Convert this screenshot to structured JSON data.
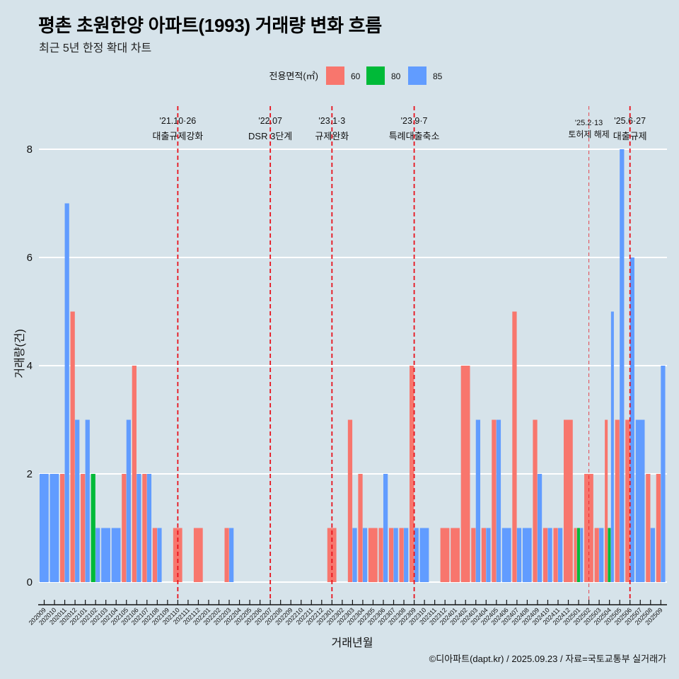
{
  "header": {
    "title": "평촌 초원한양 아파트(1993) 거래량 변화 흐름",
    "subtitle": "최근 5년 한정 확대 차트"
  },
  "legend": {
    "title": "전용면적(㎡)",
    "items": [
      {
        "label": "60",
        "color": "#F8766D"
      },
      {
        "label": "80",
        "color": "#00BA38"
      },
      {
        "label": "85",
        "color": "#619CFF"
      }
    ]
  },
  "footer": {
    "caption": "©디아파트(dapt.kr) / 2025.09.23 / 자료=국토교통부 실거래가"
  },
  "colors": {
    "background": "#d6e3ea",
    "grid": "#ffffff",
    "annotation_line": "#e8111b"
  },
  "chart_data": {
    "type": "bar",
    "bar_mode": "dodge",
    "title": "평촌 초원한양 아파트(1993) 거래량 변화 흐름",
    "subtitle": "최근 5년 한정 확대 차트",
    "xlabel": "거래년월",
    "ylabel": "거래량(건)",
    "ylim": [
      0,
      8
    ],
    "yticks": [
      0,
      2,
      4,
      6,
      8
    ],
    "grid": true,
    "legend_position": "top",
    "categories": [
      "202009",
      "202010",
      "202011",
      "202012",
      "202101",
      "202102",
      "202103",
      "202104",
      "202105",
      "202106",
      "202107",
      "202108",
      "202109",
      "202110",
      "202111",
      "202112",
      "202201",
      "202202",
      "202203",
      "202204",
      "202205",
      "202206",
      "202207",
      "202208",
      "202209",
      "202210",
      "202211",
      "202212",
      "202301",
      "202302",
      "202303",
      "202304",
      "202305",
      "202306",
      "202307",
      "202308",
      "202309",
      "202310",
      "202311",
      "202312",
      "202401",
      "202402",
      "202403",
      "202404",
      "202405",
      "202406",
      "202407",
      "202408",
      "202409",
      "202410",
      "202411",
      "202412",
      "202501",
      "202502",
      "202503",
      "202504",
      "202505",
      "202506",
      "202507",
      "202508",
      "202509"
    ],
    "series": [
      {
        "name": "60",
        "color": "#F8766D",
        "values": [
          null,
          null,
          2,
          5,
          2,
          null,
          null,
          null,
          2,
          4,
          2,
          1,
          null,
          1,
          null,
          1,
          null,
          null,
          1,
          null,
          null,
          null,
          null,
          null,
          null,
          null,
          null,
          null,
          1,
          null,
          3,
          2,
          1,
          1,
          1,
          1,
          4,
          null,
          null,
          1,
          1,
          4,
          1,
          1,
          3,
          null,
          5,
          null,
          3,
          1,
          1,
          3,
          1,
          2,
          1,
          3,
          3,
          3,
          null,
          2,
          2
        ]
      },
      {
        "name": "80",
        "color": "#00BA38",
        "values": [
          null,
          null,
          null,
          null,
          null,
          2,
          null,
          null,
          null,
          null,
          null,
          null,
          null,
          null,
          null,
          null,
          null,
          null,
          null,
          null,
          null,
          null,
          null,
          null,
          null,
          null,
          null,
          null,
          null,
          null,
          null,
          null,
          null,
          null,
          null,
          null,
          null,
          null,
          null,
          null,
          null,
          null,
          null,
          null,
          null,
          null,
          null,
          null,
          null,
          null,
          null,
          null,
          1,
          null,
          null,
          1,
          null,
          null,
          null,
          null,
          null
        ]
      },
      {
        "name": "85",
        "color": "#619CFF",
        "values": [
          2,
          2,
          7,
          3,
          3,
          1,
          1,
          1,
          3,
          2,
          2,
          1,
          null,
          null,
          null,
          null,
          null,
          null,
          1,
          null,
          null,
          null,
          null,
          null,
          null,
          null,
          null,
          null,
          null,
          null,
          1,
          1,
          null,
          2,
          1,
          1,
          1,
          1,
          null,
          null,
          null,
          null,
          3,
          1,
          3,
          1,
          1,
          1,
          2,
          1,
          1,
          null,
          1,
          null,
          1,
          5,
          8,
          6,
          3,
          1,
          4
        ]
      }
    ],
    "annotations": [
      {
        "x": "202110",
        "date": "'21.10·26",
        "text": "대출규제강화",
        "style": "major"
      },
      {
        "x": "202207",
        "date": "'22.07",
        "text": "DSR 3단계",
        "style": "major"
      },
      {
        "x": "202301",
        "date": "'23.1·3",
        "text": "규제완화",
        "style": "major"
      },
      {
        "x": "202309",
        "date": "'23.9·7",
        "text": "특례대출축소",
        "style": "major"
      },
      {
        "x": "202502",
        "date": "'25.2·13",
        "text": "토허제 해제",
        "style": "minor"
      },
      {
        "x": "202506",
        "date": "'25.6·27",
        "text": "대출규제",
        "style": "major"
      }
    ]
  }
}
